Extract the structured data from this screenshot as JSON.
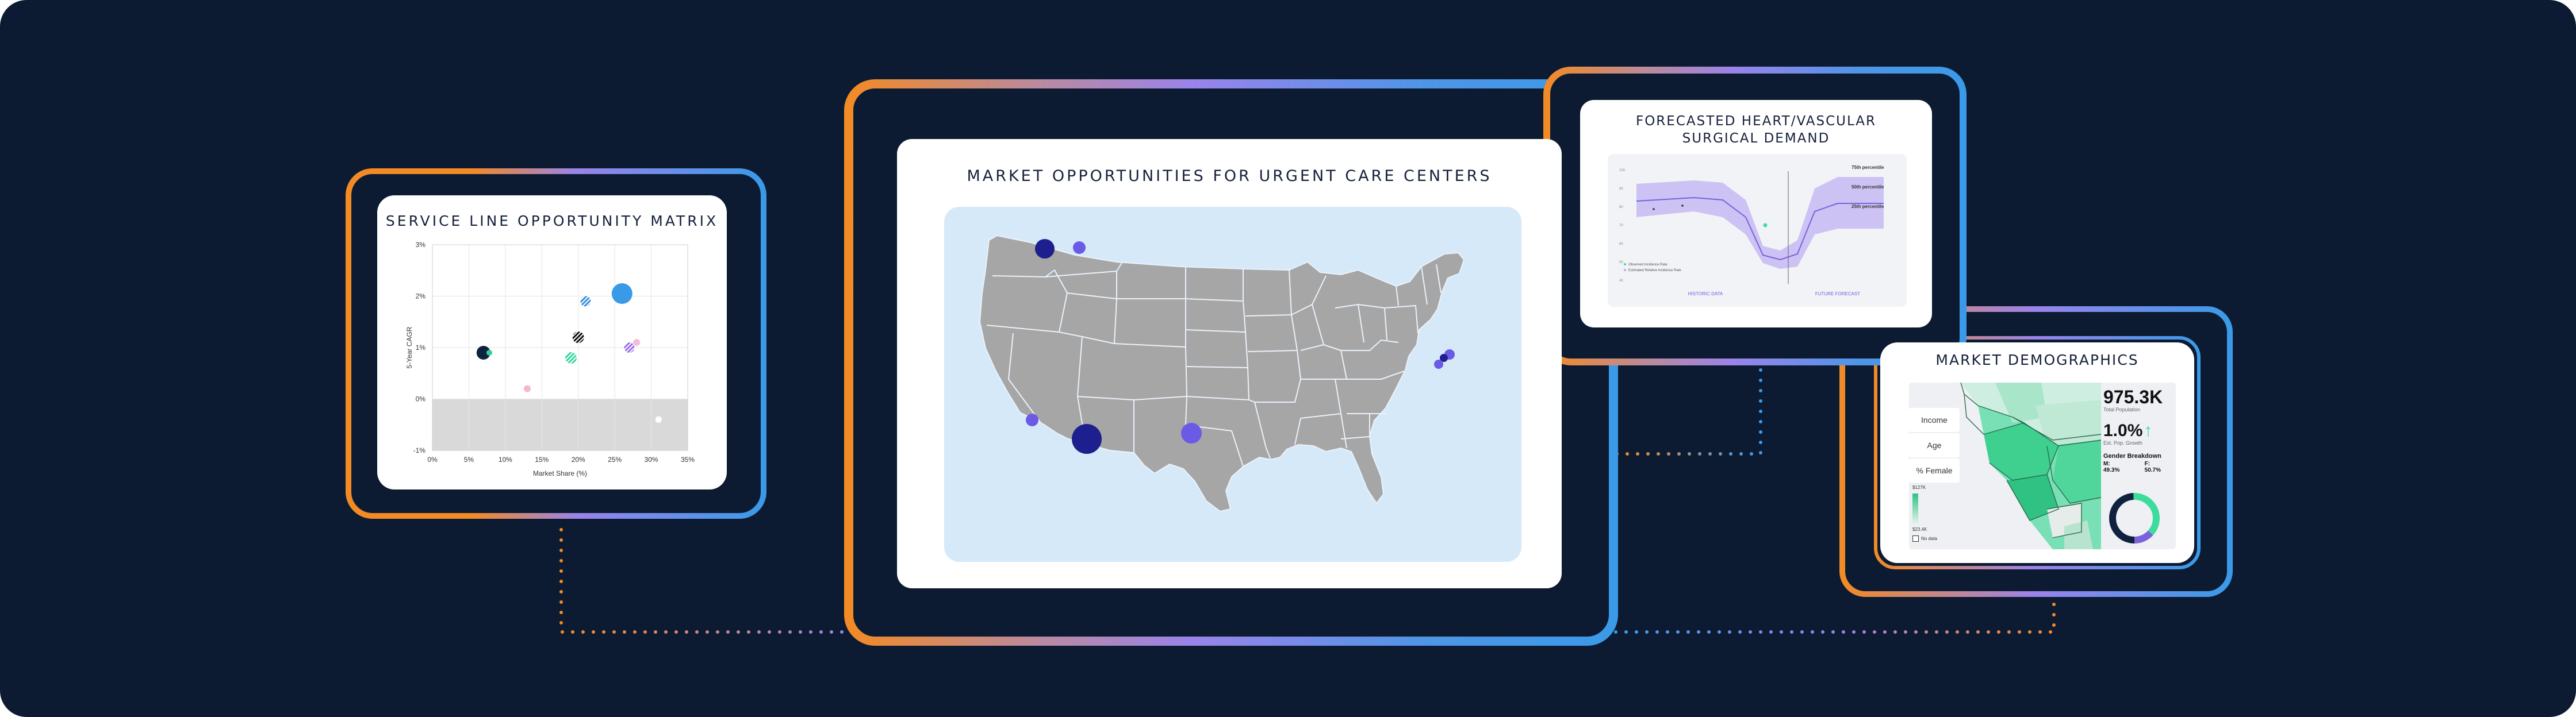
{
  "matrix": {
    "title": "SERVICE LINE OPPORTUNITY MATRIX",
    "chart_data": {
      "type": "scatter",
      "xlabel": "Market Share (%)",
      "ylabel": "5-Year CAGR",
      "x_ticks": [
        "0%",
        "5%",
        "10%",
        "15%",
        "20%",
        "25%",
        "30%",
        "35%"
      ],
      "y_ticks": [
        "3%",
        "2%",
        "1%",
        "0%",
        "-1%"
      ],
      "xlim": [
        0,
        35
      ],
      "ylim": [
        -1,
        3
      ],
      "points": [
        {
          "x": 7,
          "y": 0.9,
          "r": 12,
          "color": "#0e2240"
        },
        {
          "x": 7.8,
          "y": 0.9,
          "r": 5,
          "color": "#2fcf9b"
        },
        {
          "x": 13,
          "y": 0.2,
          "r": 6,
          "color": "#f5b8c9"
        },
        {
          "x": 19,
          "y": 0.8,
          "r": 10,
          "color": "#35d69e",
          "striped": true
        },
        {
          "x": 20,
          "y": 1.2,
          "r": 10,
          "color": "#111111",
          "striped": true
        },
        {
          "x": 21,
          "y": 1.9,
          "r": 9,
          "color": "#3b8fe0",
          "striped": true
        },
        {
          "x": 26,
          "y": 2.05,
          "r": 18,
          "color": "#3a9ae8"
        },
        {
          "x": 27,
          "y": 1.0,
          "r": 9,
          "color": "#9a6ce8",
          "striped": true
        },
        {
          "x": 28,
          "y": 1.1,
          "r": 6,
          "color": "#f3bdd5"
        },
        {
          "x": 31,
          "y": -0.4,
          "r": 6,
          "color": "#ffffff"
        }
      ]
    }
  },
  "urgent_care": {
    "title": "MARKET OPPORTUNITIES FOR URGENT CARE CENTERS"
  },
  "forecast": {
    "title_line1": "FORECASTED HEART/VASCULAR",
    "title_line2": "SURGICAL DEMAND",
    "chart_data": {
      "type": "area",
      "series": [
        {
          "name": "75th percentile"
        },
        {
          "name": "50th percentile"
        },
        {
          "name": "25th percentile"
        }
      ],
      "x_labels": [
        "HISTORIC DATA",
        "FUTURE FORECAST"
      ],
      "legend": [
        "Observed Incidence Rate",
        "Estimated Relative Incidence Rate"
      ]
    }
  },
  "demographics": {
    "title": "MARKET DEMOGRAPHICS",
    "buttons": [
      "Income",
      "Age",
      "% Female"
    ],
    "legend_top": "$127K",
    "legend_bottom": "$23.4K",
    "legend_nodata": "No data",
    "population": "975.3K",
    "population_label": "Total Population",
    "growth": "1.0%",
    "growth_label": "Est. Pop. Growth",
    "gender_title": "Gender Breakdown",
    "male_label": "M:",
    "male_value": "49.3%",
    "female_label": "F:",
    "female_value": "50.7%"
  },
  "colors": {
    "background": "#0c1b31",
    "orange": "#f28a26",
    "purple": "#9a83ea",
    "blue": "#3a9ae8",
    "map_gray": "#a6a6a6",
    "map_water": "#d6e9f9",
    "green": "#3ddc9c"
  }
}
